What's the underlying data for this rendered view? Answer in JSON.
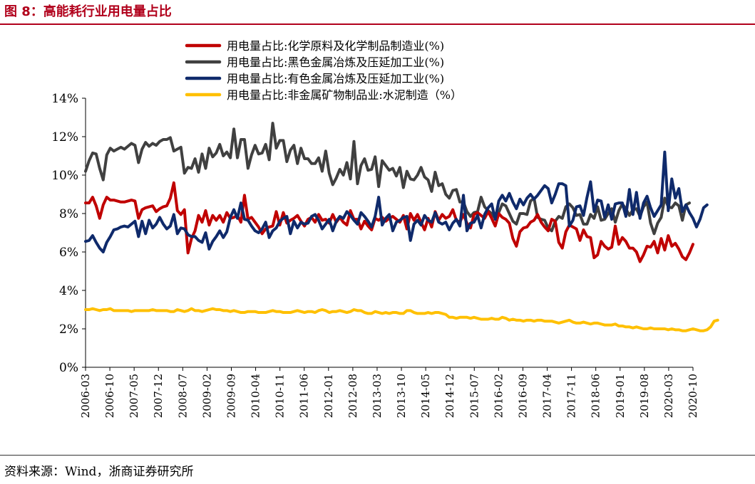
{
  "header": {
    "title": "图 8：高能耗行业用电量占比"
  },
  "footer": {
    "source": "资料来源：Wind，浙商证券研究所"
  },
  "chart_data": {
    "type": "line",
    "title": "高能耗行业用电量占比",
    "xlabel": "",
    "ylabel": "",
    "ylim": [
      0,
      14
    ],
    "yticks": [
      0,
      2,
      4,
      6,
      8,
      10,
      12,
      14
    ],
    "ytick_labels": [
      "0%",
      "2%",
      "4%",
      "6%",
      "8%",
      "10%",
      "12%",
      "14%"
    ],
    "xtick_labels": [
      "2006-03",
      "2006-10",
      "2007-05",
      "2007-12",
      "2008-07",
      "2009-02",
      "2009-09",
      "2010-04",
      "2010-11",
      "2011-06",
      "2012-01",
      "2012-08",
      "2013-03",
      "2013-10",
      "2014-05",
      "2014-12",
      "2015-07",
      "2016-02",
      "2016-09",
      "2017-04",
      "2017-11",
      "2018-06",
      "2019-01",
      "2019-08",
      "2020-03",
      "2020-10"
    ],
    "legend_position": "top-center",
    "series": [
      {
        "name": "用电量占比:化学原料及化学制品制造业(%)",
        "color": "#c00000",
        "values": [
          8.55,
          8.55,
          8.85,
          8.4,
          7.75,
          8.45,
          8.85,
          8.7,
          8.7,
          8.65,
          8.6,
          8.6,
          8.65,
          8.7,
          8.65,
          7.75,
          8.2,
          8.3,
          8.35,
          8.4,
          8.1,
          8.25,
          8.35,
          8.4,
          8.8,
          9.6,
          8.15,
          7.95,
          8.2,
          5.95,
          6.7,
          7.1,
          7.9,
          7.55,
          8.15,
          7.4,
          7.9,
          7.65,
          7.9,
          7.55,
          8.05,
          7.75,
          7.8,
          7.9,
          7.55,
          8.95,
          7.7,
          7.8,
          7.55,
          7.3,
          6.95,
          7.2,
          7.3,
          7.35,
          8.1,
          7.4,
          8.05,
          7.5,
          7.65,
          7.75,
          7.9,
          7.6,
          7.35,
          7.7,
          7.8,
          7.55,
          7.95,
          7.65,
          7.7,
          7.5,
          7.95,
          7.55,
          7.8,
          7.55,
          7.4,
          8.15,
          7.7,
          7.7,
          7.2,
          7.6,
          7.35,
          7.15,
          7.75,
          7.65,
          7.8,
          7.6,
          7.75,
          7.85,
          7.7,
          7.55,
          7.9,
          7.2,
          8.0,
          7.65,
          7.95,
          7.55,
          7.15,
          7.75,
          7.3,
          8.1,
          7.65,
          7.95,
          7.75,
          7.85,
          8.2,
          7.65,
          7.55,
          7.95,
          7.5,
          7.25,
          7.95,
          8.05,
          7.9,
          7.75,
          8.1,
          7.75,
          7.35,
          8.0,
          7.8,
          7.7,
          7.5,
          6.7,
          6.3,
          7.05,
          7.25,
          7.3,
          7.55,
          7.65,
          7.95,
          7.55,
          7.3,
          7.1,
          7.7,
          7.6,
          6.5,
          6.2,
          7.05,
          7.4,
          7.3,
          7.2,
          6.6,
          7.15,
          6.8,
          6.75,
          5.7,
          5.85,
          6.55,
          6.3,
          6.15,
          6.25,
          7.35,
          6.4,
          6.75,
          6.55,
          6.2,
          6.2,
          6.0,
          5.5,
          5.85,
          6.3,
          6.25,
          6.55,
          5.95,
          6.7,
          6.1,
          6.85,
          6.3,
          6.45,
          6.15,
          5.75,
          5.6,
          5.95,
          6.4
        ]
      },
      {
        "name": "用电量占比:黑色金属冶炼及压延加工业(%)",
        "color": "#404040",
        "values": [
          10.2,
          10.75,
          11.15,
          11.1,
          10.35,
          9.75,
          11.05,
          11.4,
          11.25,
          11.35,
          11.45,
          11.35,
          11.5,
          11.65,
          11.55,
          10.65,
          11.35,
          11.7,
          11.5,
          11.65,
          11.55,
          11.75,
          11.85,
          11.85,
          11.95,
          11.25,
          11.35,
          11.45,
          10.1,
          10.4,
          10.35,
          10.85,
          10.15,
          11.1,
          10.35,
          11.4,
          10.95,
          11.15,
          11.6,
          11.0,
          11.2,
          10.9,
          12.4,
          10.9,
          11.85,
          11.85,
          10.35,
          11.05,
          11.55,
          11.1,
          11.15,
          11.6,
          10.8,
          12.7,
          11.4,
          11.8,
          11.8,
          10.7,
          11.3,
          11.55,
          10.6,
          11.4,
          10.85,
          10.85,
          10.6,
          10.6,
          10.9,
          10.2,
          11.25,
          10.1,
          9.5,
          9.85,
          10.3,
          10.0,
          10.65,
          9.8,
          11.75,
          9.55,
          10.5,
          10.85,
          10.25,
          10.3,
          10.95,
          9.4,
          10.75,
          10.5,
          10.25,
          10.35,
          9.95,
          10.4,
          9.35,
          10.2,
          9.8,
          9.75,
          10.0,
          10.4,
          9.9,
          9.75,
          9.15,
          10.15,
          9.45,
          9.55,
          9.0,
          8.8,
          9.2,
          9.25,
          8.6,
          8.6,
          8.1,
          7.85,
          8.05,
          8.1,
          8.85,
          8.35,
          8.15,
          8.0,
          7.75,
          8.05,
          8.5,
          8.4,
          8.0,
          7.6,
          7.45,
          8.0,
          8.0,
          7.95,
          8.65,
          8.8,
          7.8,
          7.7,
          7.65,
          7.25,
          7.1,
          7.6,
          7.85,
          7.75,
          8.35,
          8.5,
          8.3,
          7.9,
          7.95,
          7.45,
          7.45,
          7.95,
          7.75,
          8.35,
          7.65,
          7.7,
          8.0,
          8.25,
          7.55,
          8.15,
          8.5,
          8.25,
          7.9,
          8.2,
          8.25,
          7.85,
          8.35,
          8.6,
          7.5,
          6.95,
          7.5,
          7.8,
          8.8,
          8.35,
          8.3,
          8.55,
          8.4,
          7.65,
          8.45,
          8.55
        ]
      },
      {
        "name": "用电量占比:有色金属冶炼及压延加工业(%)",
        "color": "#0f2a6b",
        "values": [
          6.55,
          6.6,
          6.85,
          6.5,
          6.2,
          6.0,
          6.5,
          6.8,
          7.15,
          7.2,
          7.3,
          7.35,
          7.3,
          7.45,
          7.6,
          6.8,
          7.6,
          6.95,
          7.65,
          7.25,
          7.45,
          7.8,
          7.45,
          7.2,
          7.35,
          7.95,
          6.95,
          7.25,
          7.2,
          6.9,
          6.8,
          6.8,
          6.6,
          6.5,
          7.0,
          6.15,
          6.55,
          6.8,
          7.1,
          6.75,
          7.05,
          7.8,
          8.2,
          7.75,
          8.55,
          7.7,
          7.65,
          7.35,
          7.1,
          7.0,
          7.2,
          7.55,
          6.75,
          7.1,
          7.25,
          7.6,
          7.75,
          7.85,
          6.95,
          7.6,
          7.25,
          7.55,
          7.45,
          7.5,
          7.85,
          7.95,
          7.65,
          7.2,
          7.45,
          7.7,
          7.1,
          7.6,
          7.85,
          7.75,
          8.1,
          7.9,
          7.65,
          7.45,
          8.05,
          7.85,
          7.6,
          7.3,
          7.85,
          8.85,
          7.4,
          7.75,
          7.95,
          7.1,
          7.55,
          7.65,
          7.8,
          7.85,
          6.6,
          7.45,
          7.65,
          7.4,
          7.9,
          7.65,
          7.55,
          8.05,
          7.55,
          7.45,
          7.55,
          7.15,
          7.5,
          7.7,
          7.35,
          8.95,
          7.1,
          7.5,
          7.55,
          7.9,
          7.25,
          7.95,
          8.3,
          8.5,
          7.7,
          8.65,
          8.95,
          8.65,
          9.05,
          8.6,
          8.25,
          8.75,
          8.45,
          8.8,
          9.0,
          8.75,
          8.95,
          9.2,
          9.45,
          9.3,
          8.55,
          9.0,
          9.55,
          9.55,
          9.45,
          7.35,
          7.65,
          8.35,
          8.4,
          7.9,
          8.85,
          9.65,
          8.1,
          8.7,
          8.65,
          7.8,
          8.45,
          7.7,
          8.5,
          8.55,
          8.55,
          7.85,
          9.25,
          7.95,
          9.1,
          7.75,
          8.55,
          8.9,
          8.3,
          7.85,
          8.15,
          8.45,
          11.2,
          8.15,
          9.8,
          8.8,
          9.3,
          8.1,
          8.45,
          8.05,
          7.75,
          7.3,
          7.7,
          8.3,
          8.45
        ]
      },
      {
        "name": "用电量占比:非金属矿物制品业:水泥制造（%）",
        "color": "#ffc000",
        "values": [
          3.0,
          3.0,
          3.05,
          3.0,
          2.95,
          3.0,
          3.0,
          3.05,
          2.95,
          2.95,
          2.95,
          2.95,
          2.95,
          2.9,
          2.95,
          2.95,
          2.95,
          2.95,
          2.95,
          3.0,
          2.95,
          2.95,
          2.95,
          2.95,
          2.9,
          2.9,
          3.0,
          2.95,
          2.9,
          2.95,
          3.05,
          2.95,
          2.95,
          2.9,
          2.95,
          3.0,
          3.05,
          3.0,
          3.0,
          2.95,
          2.95,
          2.9,
          2.95,
          2.9,
          2.85,
          2.85,
          2.9,
          2.9,
          2.9,
          2.85,
          2.85,
          2.85,
          2.9,
          2.95,
          2.9,
          2.9,
          2.85,
          2.85,
          2.85,
          2.9,
          2.95,
          2.9,
          2.85,
          2.9,
          2.9,
          2.85,
          2.95,
          3.0,
          2.95,
          2.85,
          2.9,
          2.9,
          2.95,
          2.9,
          2.85,
          2.9,
          3.0,
          2.95,
          2.95,
          2.85,
          2.8,
          2.8,
          2.9,
          2.85,
          2.8,
          2.85,
          2.8,
          2.85,
          2.85,
          2.8,
          2.8,
          2.95,
          2.95,
          2.85,
          2.8,
          2.8,
          2.8,
          2.85,
          2.8,
          2.85,
          2.85,
          2.8,
          2.75,
          2.6,
          2.6,
          2.55,
          2.6,
          2.6,
          2.6,
          2.55,
          2.6,
          2.55,
          2.5,
          2.5,
          2.5,
          2.55,
          2.5,
          2.5,
          2.6,
          2.55,
          2.45,
          2.5,
          2.45,
          2.45,
          2.4,
          2.45,
          2.45,
          2.4,
          2.45,
          2.45,
          2.4,
          2.4,
          2.4,
          2.35,
          2.3,
          2.35,
          2.4,
          2.45,
          2.35,
          2.3,
          2.3,
          2.35,
          2.3,
          2.25,
          2.3,
          2.3,
          2.25,
          2.2,
          2.2,
          2.2,
          2.25,
          2.15,
          2.15,
          2.1,
          2.1,
          2.05,
          2.1,
          2.05,
          2.0,
          2.0,
          2.05,
          2.0,
          2.0,
          2.0,
          2.0,
          1.95,
          2.0,
          1.95,
          1.95,
          1.9,
          1.9,
          1.95,
          2.0,
          1.95,
          1.9,
          1.9,
          1.95,
          2.1,
          2.4,
          2.45
        ]
      }
    ]
  }
}
